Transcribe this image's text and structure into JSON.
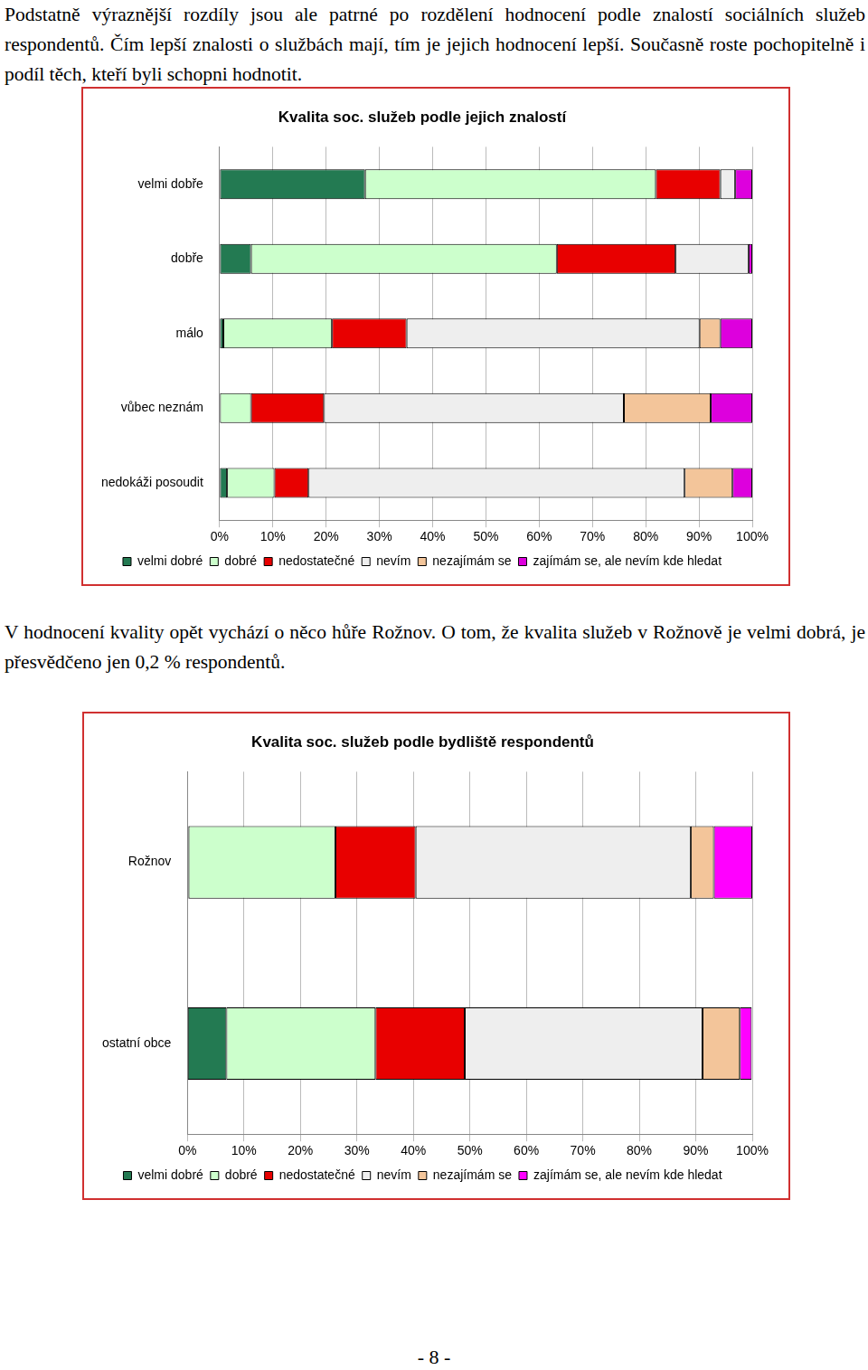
{
  "paragraphs": [
    "Podstatně výraznější rozdíly jsou ale patrné po rozdělení hodnocení podle znalostí sociálních služeb respondentů. Čím lepší znalosti o službách mají, tím je jejich hodnocení lepší. Současně roste pochopitelně i podíl těch, kteří byli schopni hodnotit.",
    "V hodnocení kvality opět vychází o něco hůře Rožnov. O tom, že kvalita služeb v Rožnově je velmi dobrá, je přesvědčeno jen 0,2 % respondentů."
  ],
  "chart_data": [
    {
      "type": "bar",
      "orientation": "horizontal",
      "stacked": true,
      "grid": true,
      "legend": "bottom",
      "title": "Kvalita soc. služeb podle jejich znalostí",
      "categories": [
        "velmi dobře",
        "dobře",
        "málo",
        "vůbec neznám",
        "nedokáži posoudit"
      ],
      "xlim": [
        0,
        100
      ],
      "xticks": [
        {
          "value": 0,
          "label": "0%"
        },
        {
          "value": 10,
          "label": "10%"
        },
        {
          "value": 20,
          "label": "20%"
        },
        {
          "value": 30,
          "label": "30%"
        },
        {
          "value": 40,
          "label": "40%"
        },
        {
          "value": 50,
          "label": "50%"
        },
        {
          "value": 60,
          "label": "60%"
        },
        {
          "value": 70,
          "label": "70%"
        },
        {
          "value": 80,
          "label": "80%"
        },
        {
          "value": 90,
          "label": "90%"
        },
        {
          "value": 100,
          "label": "100%"
        }
      ],
      "series": [
        {
          "name": "velmi dobré",
          "color": "#237a52",
          "values": [
            27.3,
            5.9,
            0.7,
            0,
            1.4
          ]
        },
        {
          "name": "dobré",
          "color": "#ccffcc",
          "values": [
            54.6,
            57.4,
            20.4,
            5.9,
            8.9
          ]
        },
        {
          "name": "nedostatečné",
          "color": "#e80000",
          "values": [
            12.1,
            22.3,
            14.0,
            13.7,
            6.4
          ]
        },
        {
          "name": "nevím",
          "color": "#eeeeee",
          "values": [
            2.8,
            13.7,
            55.0,
            56.3,
            70.6
          ]
        },
        {
          "name": "nezajímám se",
          "color": "#f3c59a",
          "values": [
            0,
            0,
            3.9,
            16.3,
            9.0
          ]
        },
        {
          "name": "zajímám se, ale nevím kde hledat",
          "color": "#dd00dd",
          "values": [
            3.2,
            0.7,
            6.0,
            7.8,
            3.7
          ]
        }
      ]
    },
    {
      "type": "bar",
      "orientation": "horizontal",
      "stacked": true,
      "grid": true,
      "legend": "bottom",
      "title": "Kvalita soc. služeb podle bydliště respondentů",
      "categories": [
        "Rožnov",
        "ostatní obce"
      ],
      "xlim": [
        0,
        100
      ],
      "xticks": [
        {
          "value": 0,
          "label": "0%"
        },
        {
          "value": 10,
          "label": "10%"
        },
        {
          "value": 20,
          "label": "20%"
        },
        {
          "value": 30,
          "label": "30%"
        },
        {
          "value": 40,
          "label": "40%"
        },
        {
          "value": 50,
          "label": "50%"
        },
        {
          "value": 60,
          "label": "60%"
        },
        {
          "value": 70,
          "label": "70%"
        },
        {
          "value": 80,
          "label": "80%"
        },
        {
          "value": 90,
          "label": "90%"
        },
        {
          "value": 100,
          "label": "100%"
        }
      ],
      "series": [
        {
          "name": "velmi dobré",
          "color": "#237a52",
          "values": [
            0.2,
            6.9
          ]
        },
        {
          "name": "dobré",
          "color": "#ccffcc",
          "values": [
            26.0,
            26.4
          ]
        },
        {
          "name": "nedostatečné",
          "color": "#e80000",
          "values": [
            14.2,
            15.8
          ]
        },
        {
          "name": "nevím",
          "color": "#eeeeee",
          "values": [
            48.7,
            42.1
          ]
        },
        {
          "name": "nezajímám se",
          "color": "#f3c59a",
          "values": [
            4.1,
            6.6
          ]
        },
        {
          "name": "zajímám se, ale nevím kde hledat",
          "color": "#ff00ff",
          "values": [
            6.8,
            2.1
          ]
        }
      ]
    }
  ],
  "page_number": "- 8 -"
}
